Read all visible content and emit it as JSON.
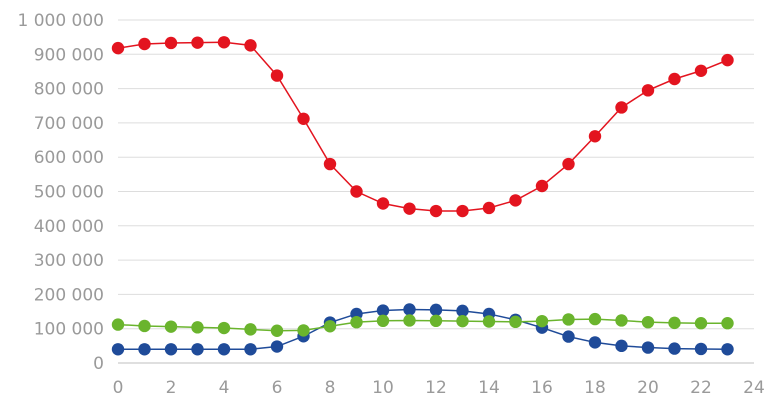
{
  "chart_data": {
    "type": "line",
    "title": "",
    "xlabel": "",
    "ylabel": "",
    "x": [
      0,
      1,
      2,
      3,
      4,
      5,
      6,
      7,
      8,
      9,
      10,
      11,
      12,
      13,
      14,
      15,
      16,
      17,
      18,
      19,
      20,
      21,
      22,
      23
    ],
    "xlim": [
      0,
      24
    ],
    "ylim": [
      0,
      1000000
    ],
    "x_ticks": [
      0,
      2,
      4,
      6,
      8,
      10,
      12,
      14,
      16,
      18,
      20,
      22,
      24
    ],
    "x_tick_labels": [
      "0",
      "2",
      "4",
      "6",
      "8",
      "10",
      "12",
      "14",
      "16",
      "18",
      "20",
      "22",
      "24"
    ],
    "y_ticks": [
      0,
      100000,
      200000,
      300000,
      400000,
      500000,
      600000,
      700000,
      800000,
      900000,
      1000000
    ],
    "y_tick_labels": [
      "0",
      "100 000",
      "200 000",
      "300 000",
      "400 000",
      "500 000",
      "600 000",
      "700 000",
      "800 000",
      "900 000",
      "1 000 000"
    ],
    "grid": true,
    "legend": "none",
    "series": [
      {
        "color": "#e3141f",
        "values": [
          918000,
          930000,
          933000,
          934000,
          935000,
          926000,
          838000,
          712000,
          580000,
          500000,
          465000,
          450000,
          443000,
          443000,
          452000,
          474000,
          516000,
          580000,
          661000,
          745000,
          795000,
          828000,
          852000,
          883000
        ]
      },
      {
        "color": "#1f4b99",
        "values": [
          40000,
          40000,
          40000,
          40000,
          40000,
          40000,
          48000,
          78000,
          118000,
          143000,
          153000,
          156000,
          155000,
          152000,
          143000,
          126000,
          103000,
          77000,
          60000,
          50000,
          45000,
          42000,
          41000,
          40000
        ]
      },
      {
        "color": "#6ab42d",
        "values": [
          112000,
          108000,
          106000,
          104000,
          102000,
          98000,
          94000,
          95000,
          107000,
          119000,
          123000,
          124000,
          123000,
          122000,
          121000,
          120000,
          122000,
          127000,
          128000,
          124000,
          119000,
          117000,
          116000,
          116000
        ]
      }
    ]
  }
}
